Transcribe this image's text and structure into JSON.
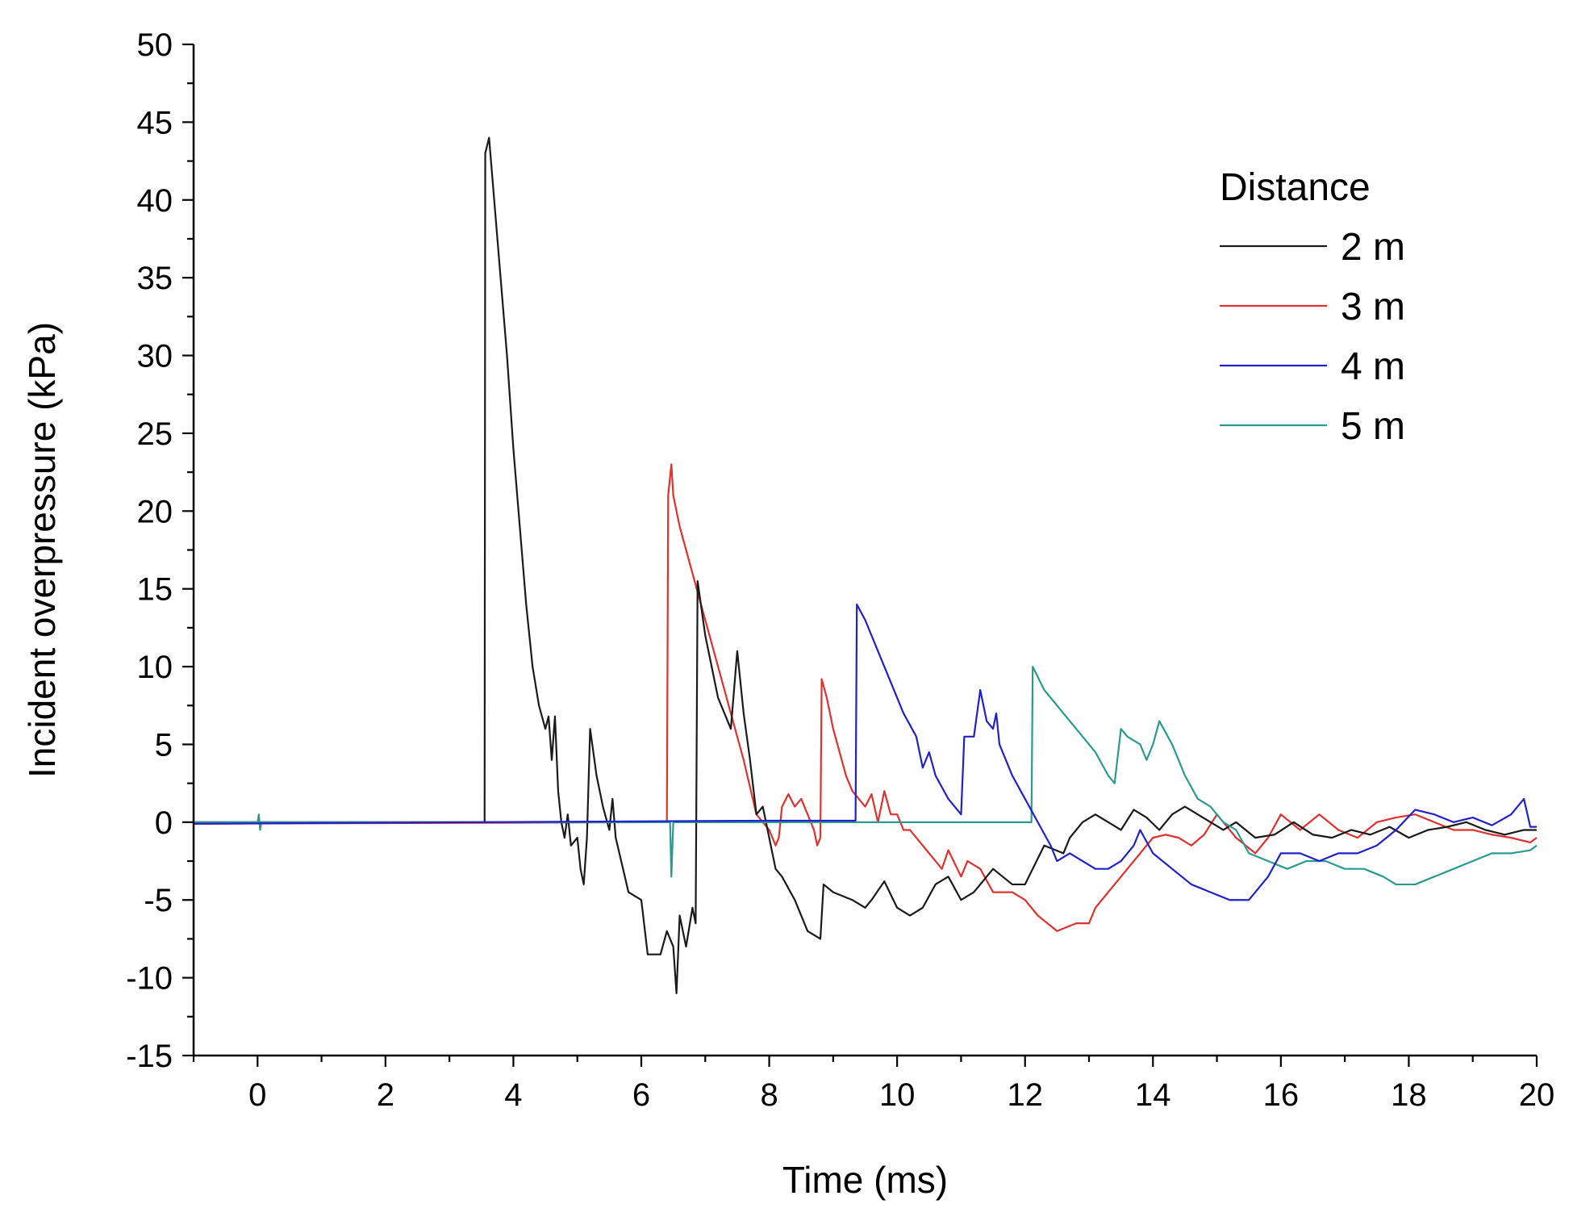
{
  "chart_data": {
    "type": "line",
    "title": "",
    "xlabel": "Time (ms)",
    "ylabel": "Incident overpressure (kPa)",
    "xlim": [
      -1,
      20
    ],
    "ylim": [
      -15,
      50
    ],
    "xticks": [
      0,
      2,
      4,
      6,
      8,
      10,
      12,
      14,
      16,
      18,
      20
    ],
    "yticks": [
      -15,
      -10,
      -5,
      0,
      5,
      10,
      15,
      20,
      25,
      30,
      35,
      40,
      45,
      50
    ],
    "legend": {
      "title": "Distance",
      "position": "top-right"
    },
    "series": [
      {
        "name": "2 m",
        "color": "#1a1a1a",
        "points": [
          [
            -1,
            0
          ],
          [
            3.55,
            0
          ],
          [
            3.56,
            43
          ],
          [
            3.62,
            44
          ],
          [
            3.7,
            40
          ],
          [
            3.8,
            35
          ],
          [
            3.9,
            30
          ],
          [
            4.0,
            24
          ],
          [
            4.1,
            19
          ],
          [
            4.2,
            14
          ],
          [
            4.3,
            10
          ],
          [
            4.4,
            7.5
          ],
          [
            4.5,
            6
          ],
          [
            4.55,
            6.8
          ],
          [
            4.6,
            4
          ],
          [
            4.65,
            6.8
          ],
          [
            4.7,
            2
          ],
          [
            4.75,
            0
          ],
          [
            4.8,
            -1
          ],
          [
            4.85,
            0.5
          ],
          [
            4.9,
            -1.5
          ],
          [
            5.0,
            -1
          ],
          [
            5.05,
            -3
          ],
          [
            5.1,
            -4
          ],
          [
            5.15,
            -1
          ],
          [
            5.2,
            6
          ],
          [
            5.3,
            3
          ],
          [
            5.4,
            1
          ],
          [
            5.5,
            -0.5
          ],
          [
            5.55,
            1.5
          ],
          [
            5.6,
            -1
          ],
          [
            5.8,
            -4.5
          ],
          [
            6.0,
            -5
          ],
          [
            6.1,
            -8.5
          ],
          [
            6.3,
            -8.5
          ],
          [
            6.4,
            -7
          ],
          [
            6.5,
            -8
          ],
          [
            6.55,
            -11
          ],
          [
            6.6,
            -6
          ],
          [
            6.7,
            -8
          ],
          [
            6.8,
            -5.5
          ],
          [
            6.85,
            -6.5
          ],
          [
            6.88,
            15.5
          ],
          [
            7.0,
            12
          ],
          [
            7.2,
            8
          ],
          [
            7.4,
            6
          ],
          [
            7.5,
            11
          ],
          [
            7.6,
            7
          ],
          [
            7.7,
            4
          ],
          [
            7.8,
            0.5
          ],
          [
            7.9,
            1
          ],
          [
            8.0,
            -1
          ],
          [
            8.1,
            -3
          ],
          [
            8.2,
            -3.5
          ],
          [
            8.4,
            -5
          ],
          [
            8.6,
            -7
          ],
          [
            8.8,
            -7.5
          ],
          [
            8.85,
            -4
          ],
          [
            9.0,
            -4.5
          ],
          [
            9.3,
            -5
          ],
          [
            9.5,
            -5.5
          ],
          [
            9.6,
            -5
          ],
          [
            9.8,
            -3.8
          ],
          [
            10.0,
            -5.5
          ],
          [
            10.2,
            -6
          ],
          [
            10.4,
            -5.5
          ],
          [
            10.6,
            -4
          ],
          [
            10.8,
            -3.5
          ],
          [
            11.0,
            -5
          ],
          [
            11.2,
            -4.5
          ],
          [
            11.5,
            -3
          ],
          [
            11.8,
            -4
          ],
          [
            12.0,
            -4
          ],
          [
            12.3,
            -1.5
          ],
          [
            12.6,
            -2
          ],
          [
            12.7,
            -1
          ],
          [
            12.9,
            0
          ],
          [
            13.1,
            0.5
          ],
          [
            13.3,
            0
          ],
          [
            13.5,
            -0.5
          ],
          [
            13.7,
            0.8
          ],
          [
            13.9,
            0.3
          ],
          [
            14.1,
            -0.5
          ],
          [
            14.3,
            0.5
          ],
          [
            14.5,
            1
          ],
          [
            14.7,
            0.5
          ],
          [
            14.9,
            0
          ],
          [
            15.1,
            -0.5
          ],
          [
            15.3,
            0
          ],
          [
            15.6,
            -1
          ],
          [
            15.9,
            -0.8
          ],
          [
            16.2,
            0
          ],
          [
            16.5,
            -0.8
          ],
          [
            16.8,
            -1
          ],
          [
            17.1,
            -0.5
          ],
          [
            17.4,
            -0.8
          ],
          [
            17.7,
            -0.3
          ],
          [
            18.0,
            -1
          ],
          [
            18.3,
            -0.5
          ],
          [
            18.6,
            -0.3
          ],
          [
            18.9,
            0
          ],
          [
            19.2,
            -0.5
          ],
          [
            19.5,
            -0.8
          ],
          [
            19.8,
            -0.5
          ],
          [
            20,
            -0.5
          ]
        ]
      },
      {
        "name": "3 m",
        "color": "#e03030",
        "points": [
          [
            -1,
            -0.1
          ],
          [
            6.4,
            0
          ],
          [
            6.42,
            21
          ],
          [
            6.47,
            23
          ],
          [
            6.5,
            21
          ],
          [
            6.6,
            19
          ],
          [
            6.8,
            16
          ],
          [
            7.0,
            13
          ],
          [
            7.2,
            10
          ],
          [
            7.4,
            7
          ],
          [
            7.6,
            4
          ],
          [
            7.8,
            0.5
          ],
          [
            8.0,
            -0.5
          ],
          [
            8.1,
            -1.5
          ],
          [
            8.15,
            -1
          ],
          [
            8.2,
            1
          ],
          [
            8.3,
            1.8
          ],
          [
            8.4,
            1
          ],
          [
            8.5,
            1.5
          ],
          [
            8.6,
            0.5
          ],
          [
            8.7,
            -0.5
          ],
          [
            8.75,
            -1.5
          ],
          [
            8.8,
            -1
          ],
          [
            8.82,
            9.2
          ],
          [
            8.9,
            8
          ],
          [
            9.0,
            6
          ],
          [
            9.1,
            4.5
          ],
          [
            9.2,
            3
          ],
          [
            9.3,
            2
          ],
          [
            9.4,
            1.5
          ],
          [
            9.5,
            1
          ],
          [
            9.6,
            1.8
          ],
          [
            9.7,
            0
          ],
          [
            9.8,
            2
          ],
          [
            9.9,
            0.5
          ],
          [
            10.0,
            0.5
          ],
          [
            10.1,
            -0.5
          ],
          [
            10.2,
            -0.5
          ],
          [
            10.4,
            -1.5
          ],
          [
            10.6,
            -2.5
          ],
          [
            10.7,
            -3
          ],
          [
            10.8,
            -1.8
          ],
          [
            11.0,
            -3.5
          ],
          [
            11.1,
            -2.5
          ],
          [
            11.3,
            -3
          ],
          [
            11.5,
            -4.5
          ],
          [
            11.8,
            -4.5
          ],
          [
            12.0,
            -5
          ],
          [
            12.2,
            -6
          ],
          [
            12.5,
            -7
          ],
          [
            12.8,
            -6.5
          ],
          [
            13.0,
            -6.5
          ],
          [
            13.1,
            -5.5
          ],
          [
            13.3,
            -4.5
          ],
          [
            13.6,
            -3
          ],
          [
            13.8,
            -2
          ],
          [
            14.0,
            -1
          ],
          [
            14.2,
            -0.8
          ],
          [
            14.4,
            -1
          ],
          [
            14.6,
            -1.5
          ],
          [
            14.8,
            -0.8
          ],
          [
            15.0,
            0.5
          ],
          [
            15.3,
            -1
          ],
          [
            15.6,
            -2
          ],
          [
            15.8,
            -1
          ],
          [
            16.0,
            0.5
          ],
          [
            16.3,
            -0.5
          ],
          [
            16.6,
            0.5
          ],
          [
            16.9,
            -0.5
          ],
          [
            17.2,
            -1
          ],
          [
            17.5,
            0
          ],
          [
            17.8,
            0.3
          ],
          [
            18.1,
            0.5
          ],
          [
            18.4,
            0
          ],
          [
            18.7,
            -0.5
          ],
          [
            19.0,
            -0.5
          ],
          [
            19.3,
            -0.8
          ],
          [
            19.6,
            -1
          ],
          [
            19.9,
            -1.3
          ],
          [
            20,
            -1
          ]
        ]
      },
      {
        "name": "4 m",
        "color": "#2020cc",
        "points": [
          [
            -1,
            -0.1
          ],
          [
            8.0,
            0.1
          ],
          [
            9.35,
            0.1
          ],
          [
            9.37,
            14
          ],
          [
            9.5,
            13
          ],
          [
            9.7,
            11
          ],
          [
            9.9,
            9
          ],
          [
            10.1,
            7
          ],
          [
            10.3,
            5.5
          ],
          [
            10.4,
            3.5
          ],
          [
            10.5,
            4.5
          ],
          [
            10.6,
            3
          ],
          [
            10.8,
            1.5
          ],
          [
            11.0,
            0.5
          ],
          [
            11.05,
            5.5
          ],
          [
            11.2,
            5.5
          ],
          [
            11.3,
            8.5
          ],
          [
            11.4,
            6.5
          ],
          [
            11.5,
            6
          ],
          [
            11.55,
            7
          ],
          [
            11.6,
            5
          ],
          [
            11.8,
            3
          ],
          [
            12.0,
            1.5
          ],
          [
            12.2,
            0
          ],
          [
            12.4,
            -1.5
          ],
          [
            12.5,
            -2.5
          ],
          [
            12.7,
            -2
          ],
          [
            12.9,
            -2.5
          ],
          [
            13.1,
            -3
          ],
          [
            13.3,
            -3
          ],
          [
            13.5,
            -2.5
          ],
          [
            13.7,
            -1.5
          ],
          [
            13.8,
            -0.5
          ],
          [
            14.0,
            -2
          ],
          [
            14.3,
            -3
          ],
          [
            14.6,
            -4
          ],
          [
            14.9,
            -4.5
          ],
          [
            15.2,
            -5
          ],
          [
            15.5,
            -5
          ],
          [
            15.8,
            -3.5
          ],
          [
            16.0,
            -2
          ],
          [
            16.3,
            -2
          ],
          [
            16.6,
            -2.5
          ],
          [
            16.9,
            -2
          ],
          [
            17.2,
            -2
          ],
          [
            17.5,
            -1.5
          ],
          [
            17.8,
            -0.5
          ],
          [
            18.1,
            0.8
          ],
          [
            18.4,
            0.5
          ],
          [
            18.7,
            0
          ],
          [
            19.0,
            0.3
          ],
          [
            19.3,
            -0.2
          ],
          [
            19.6,
            0.5
          ],
          [
            19.8,
            1.5
          ],
          [
            19.9,
            -0.3
          ],
          [
            20,
            -0.3
          ]
        ]
      },
      {
        "name": "5 m",
        "color": "#2a9a92",
        "points": [
          [
            -1,
            0
          ],
          [
            0,
            0
          ],
          [
            0.02,
            0.5
          ],
          [
            0.04,
            -0.5
          ],
          [
            0.06,
            0
          ],
          [
            6.45,
            0
          ],
          [
            6.47,
            -3.5
          ],
          [
            6.5,
            0
          ],
          [
            12.1,
            0
          ],
          [
            12.12,
            10
          ],
          [
            12.3,
            8.5
          ],
          [
            12.6,
            7
          ],
          [
            12.9,
            5.5
          ],
          [
            13.1,
            4.5
          ],
          [
            13.3,
            3
          ],
          [
            13.4,
            2.5
          ],
          [
            13.5,
            6
          ],
          [
            13.6,
            5.5
          ],
          [
            13.8,
            5
          ],
          [
            13.9,
            4
          ],
          [
            14.0,
            5
          ],
          [
            14.1,
            6.5
          ],
          [
            14.3,
            5
          ],
          [
            14.5,
            3
          ],
          [
            14.7,
            1.5
          ],
          [
            14.9,
            1
          ],
          [
            15.1,
            0
          ],
          [
            15.3,
            -0.5
          ],
          [
            15.5,
            -2
          ],
          [
            15.8,
            -2.5
          ],
          [
            16.1,
            -3
          ],
          [
            16.4,
            -2.5
          ],
          [
            16.7,
            -2.5
          ],
          [
            17.0,
            -3
          ],
          [
            17.3,
            -3
          ],
          [
            17.6,
            -3.5
          ],
          [
            17.8,
            -4
          ],
          [
            18.1,
            -4
          ],
          [
            18.4,
            -3.5
          ],
          [
            18.7,
            -3
          ],
          [
            19.0,
            -2.5
          ],
          [
            19.3,
            -2
          ],
          [
            19.6,
            -2
          ],
          [
            19.9,
            -1.8
          ],
          [
            20,
            -1.5
          ]
        ]
      }
    ]
  }
}
